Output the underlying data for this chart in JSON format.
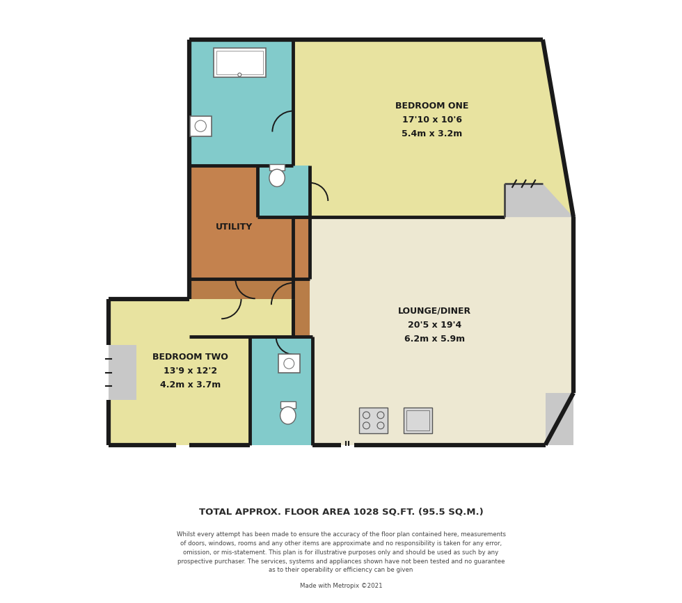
{
  "footer_title": "TOTAL APPROX. FLOOR AREA 1028 SQ.FT. (95.5 SQ.M.)",
  "footer_body": "Whilst every attempt has been made to ensure the accuracy of the floor plan contained here, measurements\nof doors, windows, rooms and any other items are approximate and no responsibility is taken for any error,\nomission, or mis-statement. This plan is for illustrative purposes only and should be used as such by any\nprospective purchaser. The services, systems and appliances shown have not been tested and no guarantee\nas to their operability or efficiency can be given",
  "footer_credit": "Made with Metropix ©2021",
  "yellow": "#e8e3a0",
  "cream": "#ede8d2",
  "teal": "#82cbcb",
  "orange": "#c4824e",
  "brown": "#b87d48",
  "gray": "#a0a0a0",
  "wall_color": "#1a1a1a",
  "white": "#ffffff",
  "light_gray": "#c8c8c8"
}
